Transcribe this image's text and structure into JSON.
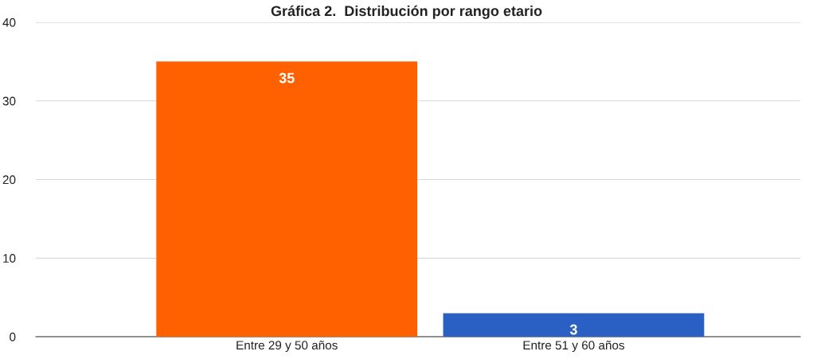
{
  "chart_data": {
    "type": "bar",
    "title": "Gráfica 2.  Distribución por rango etario",
    "categories": [
      "Entre 29 y 50 años",
      "Entre 51 y 60 años"
    ],
    "values": [
      35,
      3
    ],
    "colors": [
      "#ff6000",
      "#2a60c4"
    ],
    "ylim": [
      0,
      40
    ],
    "yticks": [
      0,
      10,
      20,
      30,
      40
    ],
    "grid": "y",
    "data_labels": true,
    "legend": false
  }
}
